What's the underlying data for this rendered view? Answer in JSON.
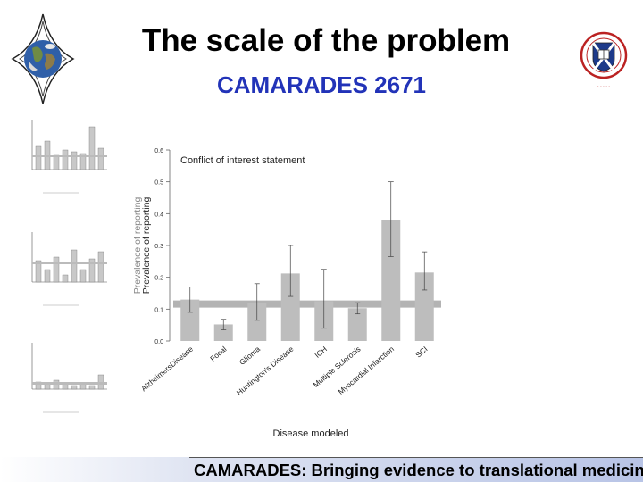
{
  "slide": {
    "title": "The scale of the problem",
    "subtitle": "CAMARADES 2671",
    "footer": "CAMARADES: Bringing evidence to translational medicine"
  },
  "colors": {
    "subtitle": "#2233b8",
    "bar": "#bdbdbd",
    "reference_band": "#b3b3b3"
  },
  "chart_data": {
    "type": "bar",
    "annotation": "Conflict of interest statement",
    "xlabel": "Disease modeled",
    "ylabel": "Prevalence of reporting",
    "ylabel_ghost": "Prevalence of reporting",
    "ylim": [
      0,
      0.6
    ],
    "yticks": [
      "0.0",
      "0.1",
      "0.2",
      "0.3",
      "0.4",
      "0.5",
      "0.6"
    ],
    "reference_line": 0.116,
    "categories": [
      "AlzheimersDisease",
      "Focal",
      "Glioma",
      "Huntington's Disease",
      "ICH",
      "Multiple Sclerosis",
      "Myocardial Infarction",
      "SCI"
    ],
    "values": [
      0.13,
      0.052,
      0.12,
      0.212,
      0.125,
      0.103,
      0.38,
      0.215
    ],
    "err_low": [
      0.09,
      0.035,
      0.065,
      0.14,
      0.04,
      0.085,
      0.265,
      0.16
    ],
    "err_high": [
      0.17,
      0.068,
      0.18,
      0.3,
      0.225,
      0.12,
      0.5,
      0.28
    ],
    "grid": false
  }
}
